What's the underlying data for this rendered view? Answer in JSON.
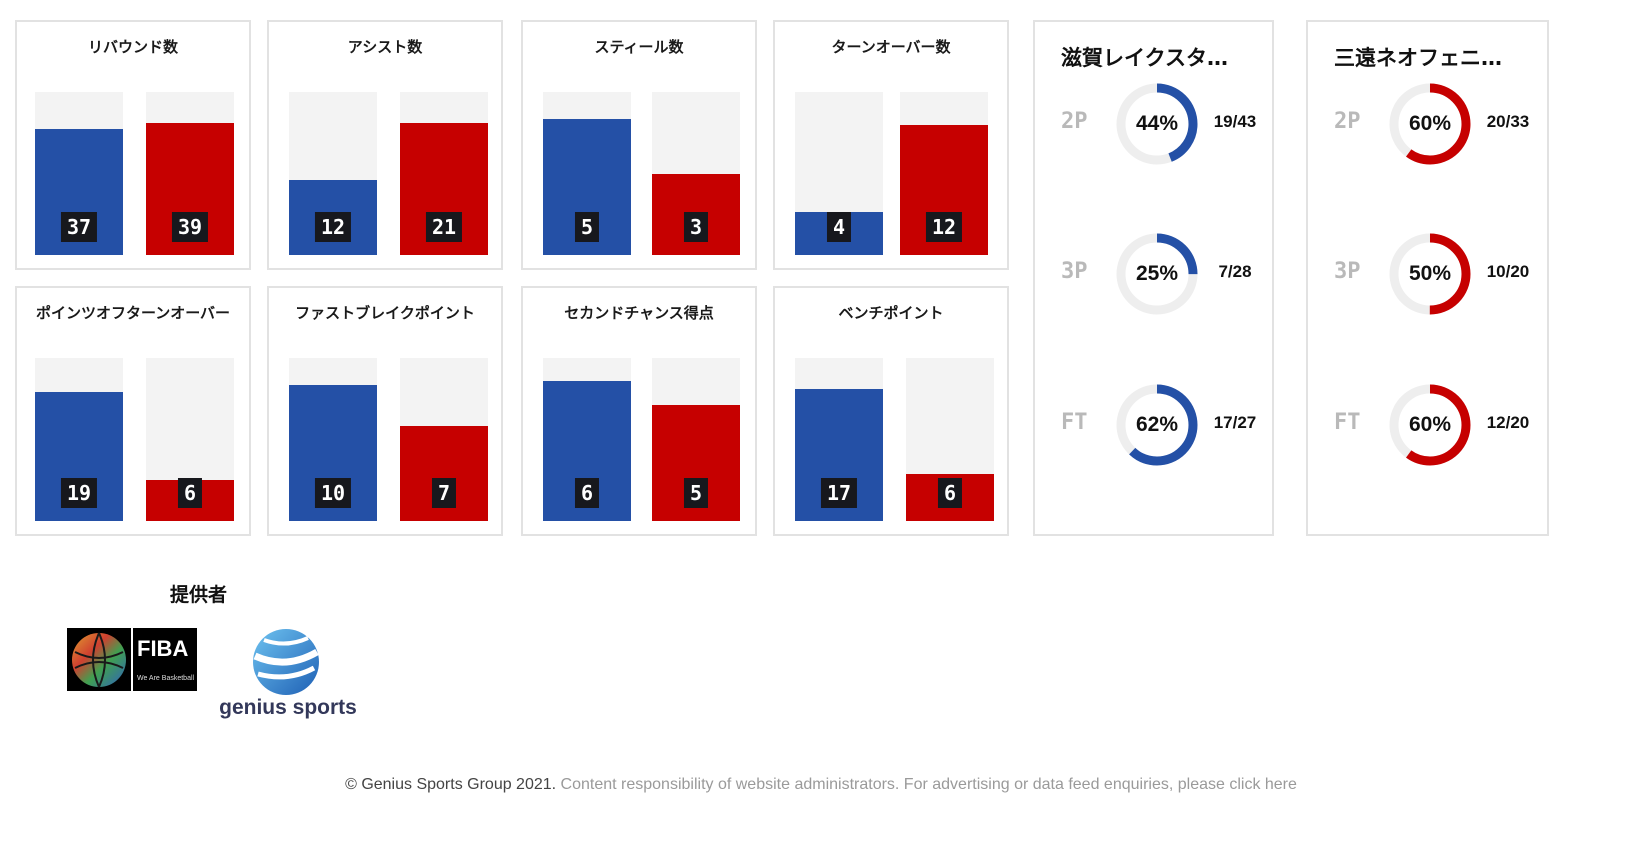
{
  "colors": {
    "home": "#2450a6",
    "away": "#c60000",
    "track": "#f3f3f3",
    "ring_track": "#eeeeee"
  },
  "stat_cards": [
    {
      "title": "リバウンド数",
      "home": 37,
      "away": 39,
      "max": 48
    },
    {
      "title": "アシスト数",
      "home": 12,
      "away": 21,
      "max": 26
    },
    {
      "title": "スティール数",
      "home": 5,
      "away": 3,
      "max": 6
    },
    {
      "title": "ターンオーバー数",
      "home": 4,
      "away": 12,
      "max": 15
    },
    {
      "title": "ポインツオフターンオーバー",
      "home": 19,
      "away": 6,
      "max": 24
    },
    {
      "title": "ファストブレイクポイント",
      "home": 10,
      "away": 7,
      "max": 12
    },
    {
      "title": "セカンドチャンス得点",
      "home": 6,
      "away": 5,
      "max": 7
    },
    {
      "title": "ベンチポイント",
      "home": 17,
      "away": 6,
      "max": 21
    }
  ],
  "shooting": [
    {
      "team": "滋賀レイクスタ…",
      "color": "#2450a6",
      "rows": [
        {
          "label": "2P",
          "pct": 44,
          "pct_text": "44%",
          "frac": "19/43"
        },
        {
          "label": "3P",
          "pct": 25,
          "pct_text": "25%",
          "frac": "7/28"
        },
        {
          "label": "FT",
          "pct": 62,
          "pct_text": "62%",
          "frac": "17/27"
        }
      ]
    },
    {
      "team": "三遠ネオフェニ…",
      "color": "#c60000",
      "rows": [
        {
          "label": "2P",
          "pct": 60,
          "pct_text": "60%",
          "frac": "20/33"
        },
        {
          "label": "3P",
          "pct": 50,
          "pct_text": "50%",
          "frac": "10/20"
        },
        {
          "label": "FT",
          "pct": 60,
          "pct_text": "60%",
          "frac": "12/20"
        }
      ]
    }
  ],
  "providers": {
    "title": "提供者",
    "fiba_word": "FIBA",
    "fiba_tagline": "We Are Basketball",
    "genius_word": "genius sports"
  },
  "footer": {
    "copyright": "© Genius Sports Group 2021.",
    "text": " Content responsibility of website administrators. For advertising or data feed enquiries, please click here"
  }
}
